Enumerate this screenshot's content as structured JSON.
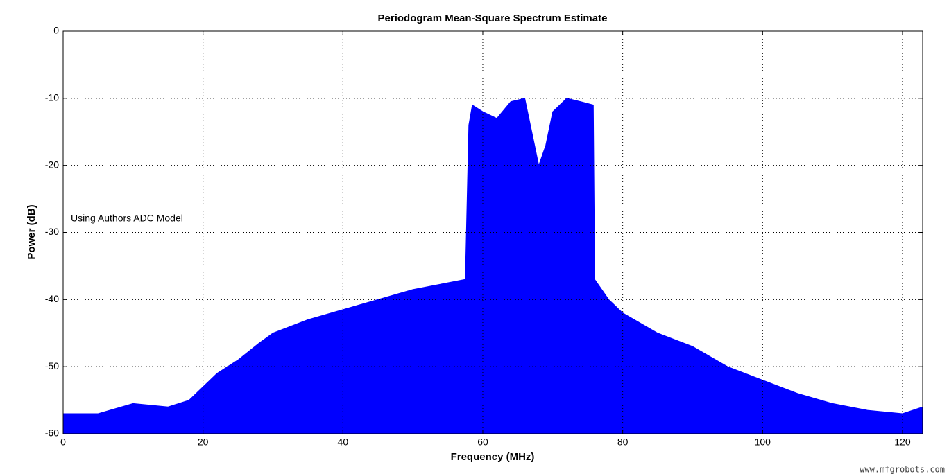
{
  "chart_data": {
    "type": "area",
    "title": "Periodogram Mean-Square Spectrum Estimate",
    "x_label": "Frequency (MHz)",
    "y_label": "Power (dB)",
    "annotation": "Using Authors ADC Model",
    "watermark": "www.mfgrobots.com",
    "x": [
      0,
      5,
      10,
      15,
      18,
      20,
      22,
      25,
      28,
      30,
      35,
      40,
      45,
      50,
      55,
      57.5,
      58,
      58.5,
      60,
      62,
      64,
      66,
      67,
      68,
      69,
      70,
      72,
      74,
      75.8,
      76,
      78,
      80,
      85,
      90,
      95,
      100,
      105,
      110,
      115,
      120,
      122.88
    ],
    "series": [
      {
        "color": "#0000ff",
        "values": [
          -57,
          -57,
          -55.5,
          -56,
          -55,
          -53,
          -51,
          -49,
          -46.5,
          -45,
          -43,
          -41.5,
          -40,
          -38.5,
          -37.5,
          -37,
          -14,
          -11,
          -12,
          -13,
          -10.5,
          -10,
          -15,
          -20,
          -17,
          -12,
          -10,
          -10.5,
          -11,
          -37,
          -40,
          -42,
          -45,
          -47,
          -50,
          -52,
          -54,
          -55.5,
          -56.5,
          -57,
          -56
        ]
      }
    ],
    "xlim": [
      0,
      122.88
    ],
    "ylim": [
      -60,
      0
    ],
    "xticks": [
      0,
      20,
      40,
      60,
      80,
      100,
      120
    ],
    "yticks": [
      -60,
      -50,
      -40,
      -30,
      -20,
      -10,
      0
    ],
    "grid": true
  }
}
